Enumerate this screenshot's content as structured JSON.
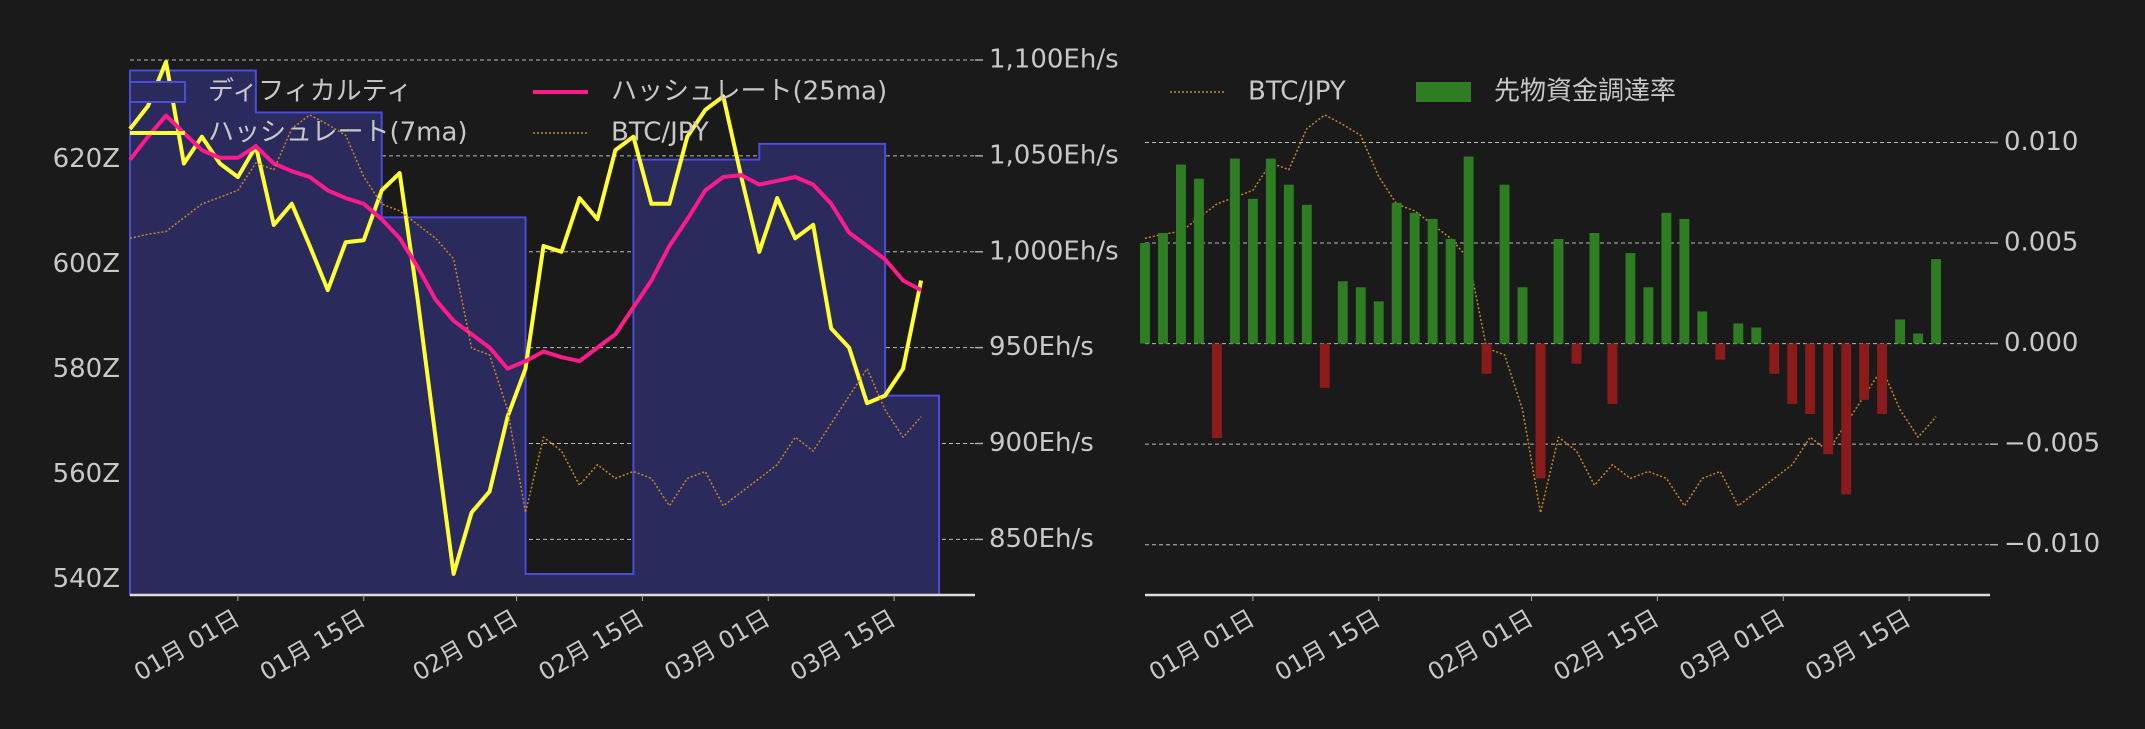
{
  "chart_data": [
    {
      "type": "line",
      "x": [
        "12-20",
        "12-22",
        "12-24",
        "12-26",
        "12-28",
        "12-30",
        "01-01",
        "01-03",
        "01-05",
        "01-07",
        "01-09",
        "01-11",
        "01-13",
        "01-15",
        "01-17",
        "01-19",
        "01-21",
        "01-23",
        "01-25",
        "01-27",
        "01-29",
        "01-31",
        "02-02",
        "02-04",
        "02-06",
        "02-08",
        "02-10",
        "02-12",
        "02-14",
        "02-16",
        "02-18",
        "02-20",
        "02-22",
        "02-24",
        "02-26",
        "02-28",
        "03-02",
        "03-04",
        "03-06",
        "03-08",
        "03-10",
        "03-12",
        "03-14",
        "03-16",
        "03-18"
      ],
      "xlim": [
        "12-20",
        "03-24"
      ],
      "xticks": [
        {
          "value": "01-01",
          "label": "01月 01日"
        },
        {
          "value": "01-15",
          "label": "01月 15日"
        },
        {
          "value": "02-01",
          "label": "02月 01日"
        },
        {
          "value": "02-15",
          "label": "02月 15日"
        },
        {
          "value": "03-01",
          "label": "03月 01日"
        },
        {
          "value": "03-15",
          "label": "03月 15日"
        }
      ],
      "ylim": [
        537,
        639
      ],
      "yticks": [
        {
          "value": 540,
          "label": "540Z"
        },
        {
          "value": 560,
          "label": "560Z"
        },
        {
          "value": 580,
          "label": "580Z"
        },
        {
          "value": 600,
          "label": "600Z"
        },
        {
          "value": 620,
          "label": "620Z"
        }
      ],
      "y2lim": [
        821,
        1100
      ],
      "y2ticks": [
        {
          "value": 850,
          "label": "850Eh/s"
        },
        {
          "value": 900,
          "label": "900Eh/s"
        },
        {
          "value": 950,
          "label": "950Eh/s"
        },
        {
          "value": 1000,
          "label": "1,000Eh/s"
        },
        {
          "value": 1050,
          "label": "1,050Eh/s"
        },
        {
          "value": 1100,
          "label": "1,100Eh/s"
        }
      ],
      "y3lim": [
        0,
        390
      ],
      "grid": true,
      "legend_columns": 2,
      "series": [
        {
          "name": "ディフィカルティ",
          "type": "step-area",
          "axis": "y",
          "color": "#4b4bdc",
          "fill": "#2a2a5c",
          "values": [
            637,
            637,
            637,
            637,
            637,
            637,
            637,
            629,
            629,
            629,
            629,
            629,
            629,
            629,
            609,
            609,
            609,
            609,
            609,
            609,
            609,
            609,
            541,
            541,
            541,
            541,
            541,
            541,
            620,
            620,
            620,
            620,
            620,
            620,
            620,
            623,
            623,
            623,
            623,
            623,
            623,
            623,
            575,
            575,
            575
          ]
        },
        {
          "name": "ハッシュレート(7ma)",
          "type": "line",
          "axis": "y2",
          "color": "#ffff33",
          "values": [
            1064,
            1076,
            1099,
            1046,
            1060,
            1046,
            1039,
            1055,
            1014,
            1025,
            1003,
            980,
            1005,
            1006,
            1032,
            1041,
            975,
            903,
            832,
            864,
            875,
            914,
            939,
            1003,
            1000,
            1028,
            1017,
            1053,
            1060,
            1025,
            1025,
            1060,
            1074,
            1081,
            1039,
            1000,
            1028,
            1007,
            1014,
            960,
            950,
            921,
            925,
            939,
            985
          ]
        },
        {
          "name": "ハッシュレート(25ma)",
          "type": "line",
          "axis": "y2",
          "color": "#ff1a8c",
          "values": [
            1048,
            1060,
            1071,
            1062,
            1053,
            1049,
            1049,
            1055,
            1046,
            1042,
            1039,
            1032,
            1028,
            1025,
            1017,
            1007,
            992,
            975,
            964,
            957,
            950,
            939,
            943,
            948,
            945,
            943,
            950,
            957,
            971,
            985,
            1003,
            1017,
            1032,
            1039,
            1040,
            1035,
            1037,
            1039,
            1035,
            1025,
            1010,
            1003,
            996,
            985,
            980
          ]
        },
        {
          "name": "BTC/JPY",
          "type": "dotted",
          "axis": "y3",
          "color": "#c8861e",
          "values": [
            260,
            263,
            265,
            275,
            285,
            290,
            295,
            315,
            310,
            340,
            350,
            343,
            335,
            305,
            285,
            280,
            270,
            260,
            245,
            180,
            175,
            135,
            60,
            115,
            105,
            80,
            95,
            85,
            90,
            85,
            65,
            85,
            90,
            65,
            75,
            85,
            95,
            115,
            105,
            125,
            145,
            165,
            135,
            115,
            130
          ]
        }
      ]
    },
    {
      "type": "bar",
      "x": [
        "12-20",
        "12-22",
        "12-24",
        "12-26",
        "12-28",
        "12-30",
        "01-01",
        "01-03",
        "01-05",
        "01-07",
        "01-09",
        "01-11",
        "01-13",
        "01-15",
        "01-17",
        "01-19",
        "01-21",
        "01-23",
        "01-25",
        "01-27",
        "01-29",
        "01-31",
        "02-02",
        "02-04",
        "02-06",
        "02-08",
        "02-10",
        "02-12",
        "02-14",
        "02-16",
        "02-18",
        "02-20",
        "02-22",
        "02-24",
        "02-26",
        "02-28",
        "03-02",
        "03-04",
        "03-06",
        "03-08",
        "03-10",
        "03-12",
        "03-14",
        "03-16",
        "03-18"
      ],
      "xlim": [
        "12-20",
        "03-24"
      ],
      "xticks": [
        {
          "value": "01-01",
          "label": "01月 01日"
        },
        {
          "value": "01-15",
          "label": "01月 15日"
        },
        {
          "value": "02-01",
          "label": "02月 01日"
        },
        {
          "value": "02-15",
          "label": "02月 15日"
        },
        {
          "value": "03-01",
          "label": "03月 01日"
        },
        {
          "value": "03-15",
          "label": "03月 15日"
        }
      ],
      "y2lim": [
        -0.0125,
        0.0141
      ],
      "y2ticks": [
        {
          "value": -0.01,
          "label": "−0.010"
        },
        {
          "value": -0.005,
          "label": "−0.005"
        },
        {
          "value": 0,
          "label": "0.000"
        },
        {
          "value": 0.005,
          "label": "0.005"
        },
        {
          "value": 0.01,
          "label": "0.010"
        }
      ],
      "y3lim": [
        0,
        390
      ],
      "grid": true,
      "legend_columns": 2,
      "series": [
        {
          "name": "BTC/JPY",
          "type": "dotted",
          "axis": "y3",
          "color": "#c8861e",
          "values": [
            260,
            263,
            265,
            275,
            285,
            290,
            295,
            315,
            310,
            340,
            350,
            343,
            335,
            305,
            285,
            280,
            270,
            260,
            245,
            180,
            175,
            135,
            60,
            115,
            105,
            80,
            95,
            85,
            90,
            85,
            65,
            85,
            90,
            65,
            75,
            85,
            95,
            115,
            105,
            125,
            145,
            165,
            135,
            115,
            130
          ]
        },
        {
          "name": "先物資金調達率",
          "type": "bar",
          "axis": "y2",
          "color": "#2e7d22",
          "negative_color": "#8b1a1a",
          "values": [
            0.005,
            0.0055,
            0.0089,
            0.0082,
            -0.0047,
            0.0092,
            0.0072,
            0.0092,
            0.0079,
            0.0069,
            -0.0022,
            0.0031,
            0.0028,
            0.0021,
            0.007,
            0.0065,
            0.0062,
            0.0052,
            0.0093,
            -0.0015,
            0.0079,
            0.0028,
            -0.0067,
            0.0052,
            -0.001,
            0.0055,
            -0.003,
            0.0045,
            0.0028,
            0.0065,
            0.0062,
            0.0016,
            -0.0008,
            0.001,
            0.0008,
            -0.0015,
            -0.003,
            -0.0035,
            -0.0055,
            -0.0075,
            -0.0028,
            -0.0035,
            0.0012,
            0.0005,
            0.0042
          ]
        }
      ]
    }
  ]
}
